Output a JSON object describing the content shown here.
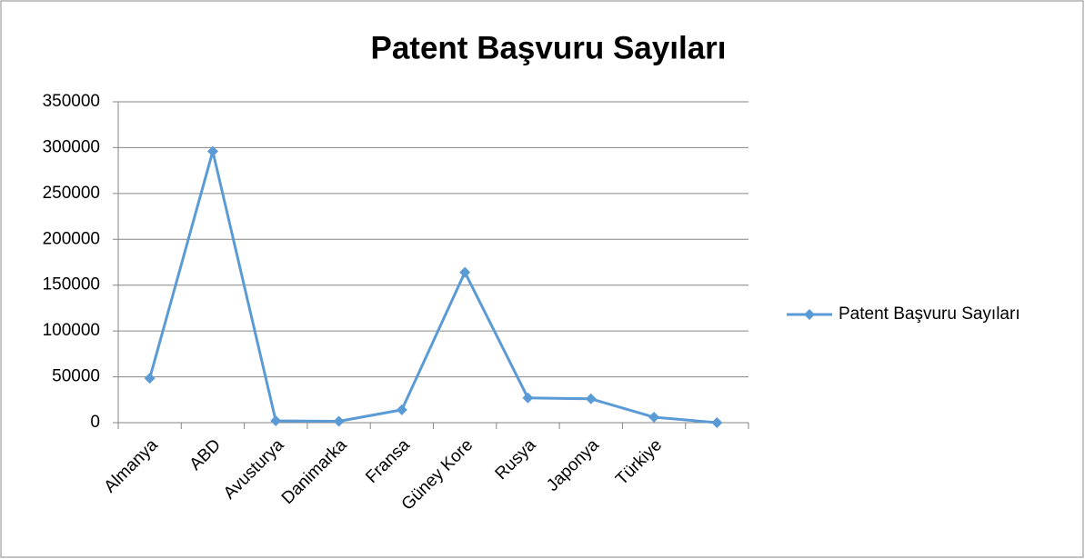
{
  "chart_data": {
    "type": "line",
    "title": "Patent Başvuru Sayıları",
    "categories": [
      "Almanya",
      "ABD",
      "Avusturya",
      "Danimarka",
      "Fransa",
      "Güney Kore",
      "Rusya",
      "Japonya",
      "Türkiye",
      null
    ],
    "series": [
      {
        "name": "Patent Başvuru Sayıları",
        "color": "#5b9bd5",
        "values": [
          48500,
          296000,
          2000,
          1500,
          14000,
          164000,
          27000,
          26000,
          6000,
          0
        ]
      }
    ],
    "ylim": [
      0,
      350000
    ],
    "yticks": [
      0,
      50000,
      100000,
      150000,
      200000,
      250000,
      300000,
      350000
    ],
    "grid": true,
    "legend": "right"
  }
}
